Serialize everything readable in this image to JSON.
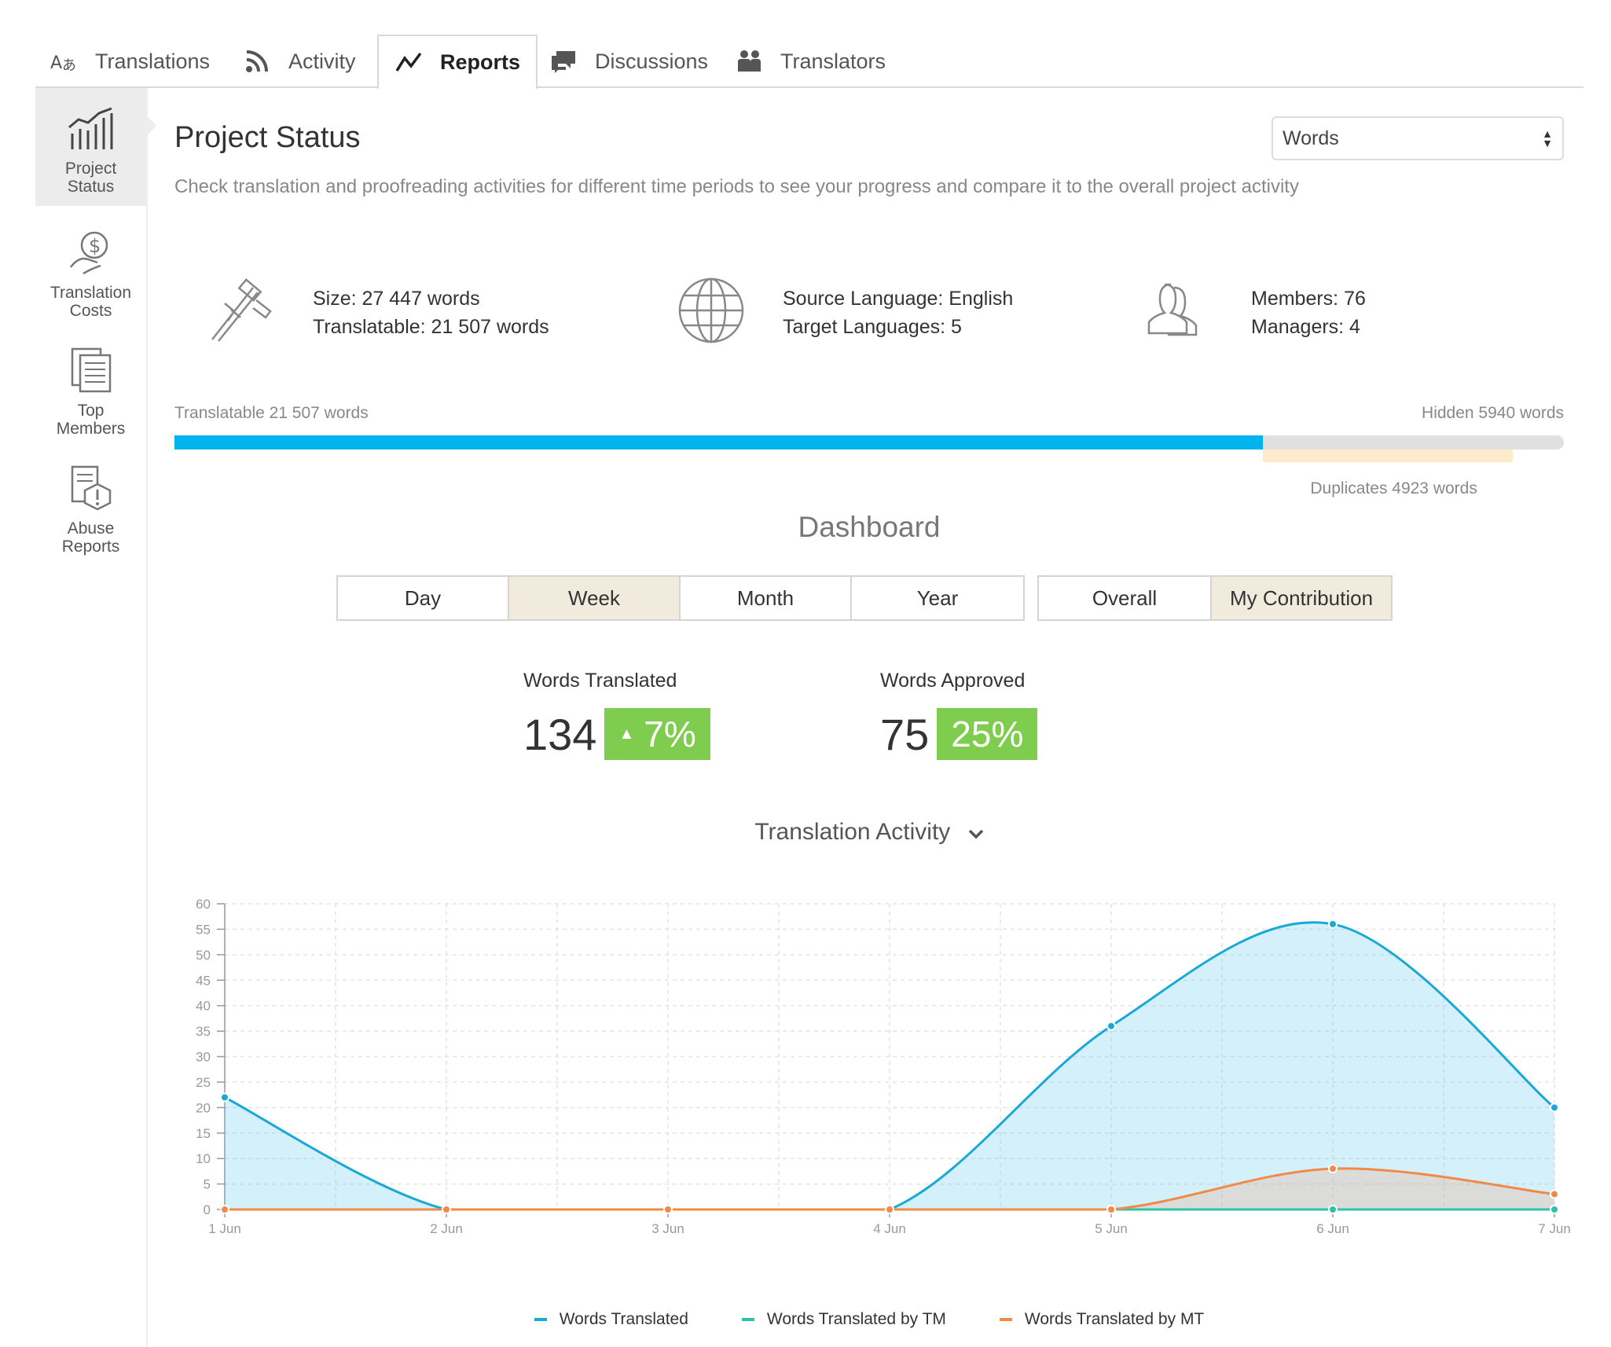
{
  "tabs": [
    {
      "label": "Translations",
      "icon": "translate-icon"
    },
    {
      "label": "Activity",
      "icon": "rss-icon"
    },
    {
      "label": "Reports",
      "icon": "chart-line-icon"
    },
    {
      "label": "Discussions",
      "icon": "chat-bubbles-icon"
    },
    {
      "label": "Translators",
      "icon": "people-icon"
    }
  ],
  "active_tab": "Reports",
  "sidebar": {
    "items": [
      {
        "label_line1": "Project",
        "label_line2": "Status",
        "icon": "bar-chart-icon",
        "active": true
      },
      {
        "label_line1": "Translation",
        "label_line2": "Costs",
        "icon": "money-hand-icon",
        "active": false
      },
      {
        "label_line1": "Top",
        "label_line2": "Members",
        "icon": "document-list-icon",
        "active": false
      },
      {
        "label_line1": "Abuse",
        "label_line2": "Reports",
        "icon": "warning-document-icon",
        "active": false
      }
    ]
  },
  "page": {
    "title": "Project Status",
    "description": "Check translation and proofreading activities for different time periods to see your progress and compare it to the overall project activity",
    "unit_select": "Words"
  },
  "stats": {
    "size": "Size: 27 447 words",
    "translatable": "Translatable: 21 507 words",
    "source_language": "Source Language: English",
    "target_languages": "Target Languages: 5",
    "members": "Members: 76",
    "managers": "Managers: 4"
  },
  "progress": {
    "left_label": "Translatable 21 507 words",
    "right_label": "Hidden 5940 words",
    "duplicates_label": "Duplicates 4923 words",
    "translatable_fraction": 0.7836,
    "duplicates_fraction": 0.1794
  },
  "dashboard": {
    "title": "Dashboard",
    "periods": [
      "Day",
      "Week",
      "Month",
      "Year"
    ],
    "selected_period": "Week",
    "scopes": [
      "Overall",
      "My Contribution"
    ],
    "selected_scope": "My Contribution",
    "words_translated_label": "Words Translated",
    "words_translated_value": "134",
    "words_translated_change": "7%",
    "words_approved_label": "Words Approved",
    "words_approved_value": "75",
    "words_approved_change": "25%"
  },
  "chart_title": "Translation Activity",
  "colors": {
    "accent": "#00b4f0",
    "badge_green": "#7fcd4f",
    "series_translated": "#1aa9d6",
    "series_tm": "#2cc4a8",
    "series_mt": "#f08a46"
  },
  "chart_data": {
    "type": "area",
    "categories": [
      "1 Jun",
      "2 Jun",
      "3 Jun",
      "4 Jun",
      "5 Jun",
      "6 Jun",
      "7 Jun"
    ],
    "series": [
      {
        "name": "Words Translated",
        "values": [
          22,
          0,
          0,
          0,
          36,
          56,
          20
        ]
      },
      {
        "name": "Words Translated by TM",
        "values": [
          0,
          0,
          0,
          0,
          0,
          0,
          0
        ]
      },
      {
        "name": "Words Translated by MT",
        "values": [
          0,
          0,
          0,
          0,
          0,
          8,
          3
        ]
      }
    ],
    "yticks": [
      0,
      5,
      10,
      15,
      20,
      25,
      30,
      35,
      40,
      45,
      50,
      55,
      60
    ],
    "ylim": [
      0,
      60
    ],
    "grid": true,
    "legend": "bottom"
  }
}
